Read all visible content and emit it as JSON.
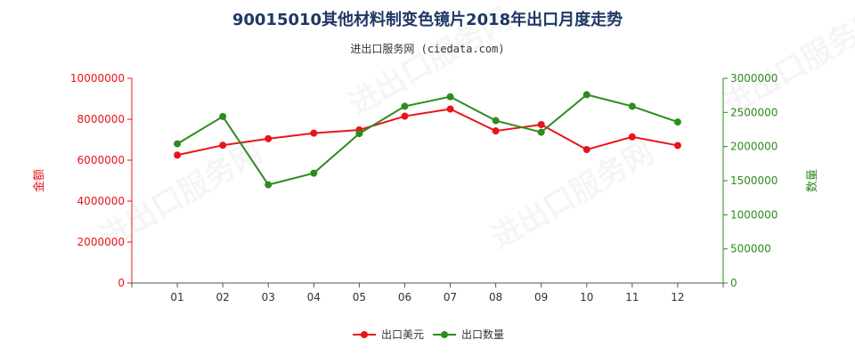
{
  "chart_data": {
    "type": "line",
    "title": "90015010其他材料制变色镜片2018年出口月度走势",
    "subtitle": "进出口服务网 (ciedata.com)",
    "categories": [
      "01",
      "02",
      "03",
      "04",
      "05",
      "06",
      "07",
      "08",
      "09",
      "10",
      "11",
      "12"
    ],
    "left_axis": {
      "label": "金额",
      "ylim": [
        0,
        10000000
      ],
      "ticks": [
        "0",
        "2000000",
        "4000000",
        "6000000",
        "8000000",
        "10000000"
      ],
      "color": "#e8141b"
    },
    "right_axis": {
      "label": "数量",
      "ylim": [
        0,
        3000000
      ],
      "ticks": [
        "0",
        "500000",
        "1000000",
        "1500000",
        "2000000",
        "2500000",
        "3000000"
      ],
      "color": "#2e8b1e"
    },
    "series": [
      {
        "name": "出口美元",
        "axis": "left",
        "color": "#e8141b",
        "values": [
          6250000,
          6730000,
          7050000,
          7320000,
          7480000,
          8150000,
          8500000,
          7430000,
          7740000,
          6520000,
          7140000,
          6720000
        ]
      },
      {
        "name": "出口数量",
        "axis": "right",
        "color": "#2e8b1e",
        "values": [
          2040000,
          2440000,
          1440000,
          1610000,
          2190000,
          2590000,
          2730000,
          2380000,
          2210000,
          2760000,
          2590000,
          2360000
        ]
      }
    ],
    "legend_position": "bottom-center",
    "watermark": "进出口服务网",
    "grid": false
  }
}
